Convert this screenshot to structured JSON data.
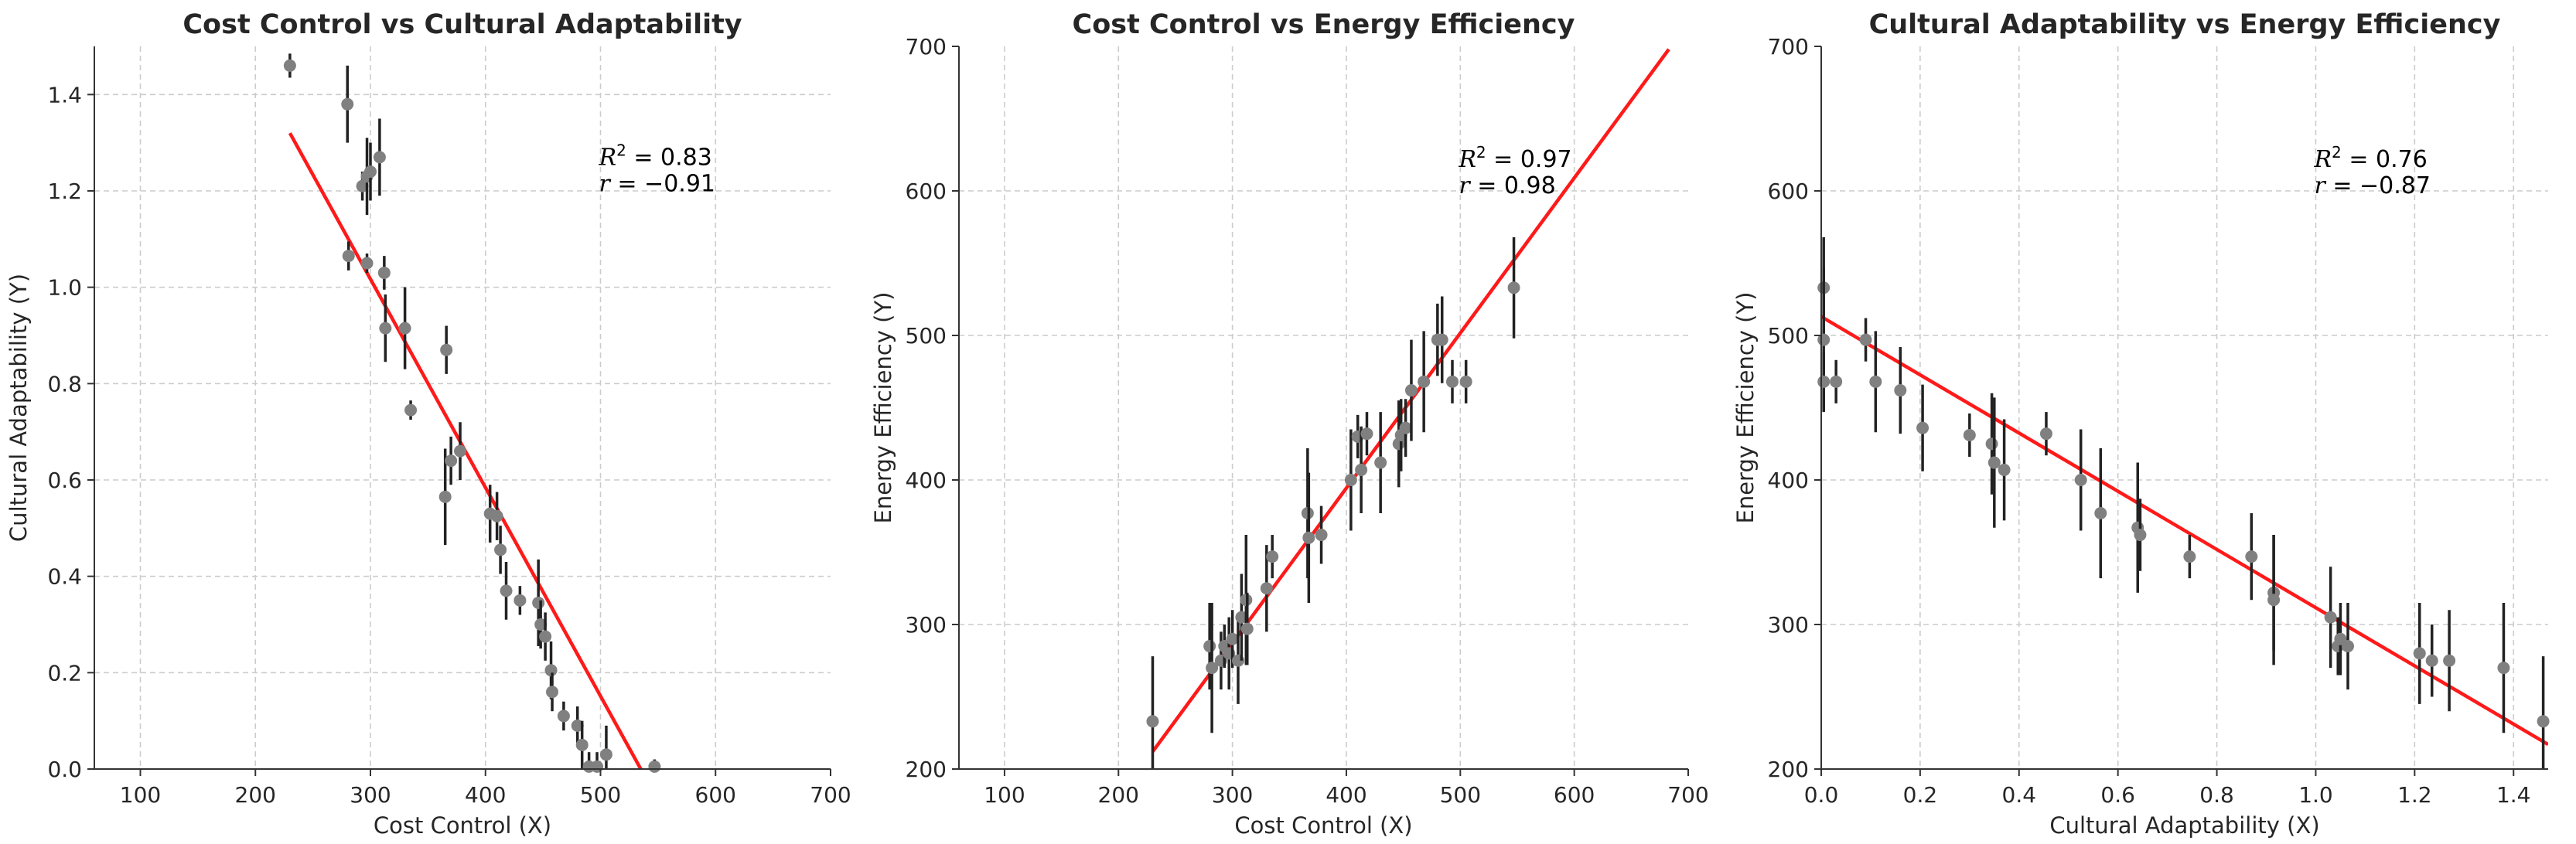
{
  "chart_data": [
    {
      "type": "scatter",
      "title": "Cost Control vs Cultural Adaptability",
      "xlabel": "Cost Control (X)",
      "ylabel": "Cultural Adaptability (Y)",
      "xlim": [
        60,
        700
      ],
      "ylim": [
        0,
        1.5
      ],
      "xticks": [
        100,
        200,
        300,
        400,
        500,
        600,
        700
      ],
      "yticks": [
        0,
        0.2,
        0.4,
        0.6,
        0.8,
        1.0,
        1.2,
        1.4
      ],
      "yticks_labels": [
        "0.0",
        "0.2",
        "0.4",
        "0.6",
        "0.8",
        "1.0",
        "1.2",
        "1.4"
      ],
      "grid": true,
      "annotation": {
        "r2": "0.83",
        "r": "−0.91",
        "pos": [
          500,
          1.27
        ]
      },
      "fit_line": {
        "x": [
          230,
          535
        ],
        "y": [
          1.32,
          0.0
        ]
      },
      "points": [
        {
          "x": 230,
          "y": 1.46,
          "err": 0.025
        },
        {
          "x": 280,
          "y": 1.38,
          "err": 0.08
        },
        {
          "x": 293,
          "y": 1.21,
          "err": 0.03
        },
        {
          "x": 297,
          "y": 1.23,
          "err": 0.08
        },
        {
          "x": 300,
          "y": 1.24,
          "err": 0.06
        },
        {
          "x": 308,
          "y": 1.27,
          "err": 0.08
        },
        {
          "x": 281,
          "y": 1.065,
          "err": 0.03
        },
        {
          "x": 297,
          "y": 1.05,
          "err": 0.02
        },
        {
          "x": 312,
          "y": 1.03,
          "err": 0.035
        },
        {
          "x": 313,
          "y": 0.915,
          "err": 0.07
        },
        {
          "x": 330,
          "y": 0.915,
          "err": 0.085
        },
        {
          "x": 335,
          "y": 0.745,
          "err": 0.02
        },
        {
          "x": 366,
          "y": 0.87,
          "err": 0.05
        },
        {
          "x": 365,
          "y": 0.565,
          "err": 0.1
        },
        {
          "x": 370,
          "y": 0.64,
          "err": 0.05
        },
        {
          "x": 378,
          "y": 0.66,
          "err": 0.06
        },
        {
          "x": 404,
          "y": 0.53,
          "err": 0.06
        },
        {
          "x": 410,
          "y": 0.525,
          "err": 0.05
        },
        {
          "x": 413,
          "y": 0.455,
          "err": 0.05
        },
        {
          "x": 418,
          "y": 0.37,
          "err": 0.06
        },
        {
          "x": 430,
          "y": 0.35,
          "err": 0.03
        },
        {
          "x": 446,
          "y": 0.345,
          "err": 0.09
        },
        {
          "x": 448,
          "y": 0.3,
          "err": 0.05
        },
        {
          "x": 452,
          "y": 0.275,
          "err": 0.05
        },
        {
          "x": 457,
          "y": 0.205,
          "err": 0.06
        },
        {
          "x": 458,
          "y": 0.16,
          "err": 0.04
        },
        {
          "x": 468,
          "y": 0.11,
          "err": 0.03
        },
        {
          "x": 480,
          "y": 0.09,
          "err": 0.04
        },
        {
          "x": 484,
          "y": 0.05,
          "err": 0.05
        },
        {
          "x": 490,
          "y": 0.005,
          "err": 0.03
        },
        {
          "x": 497,
          "y": 0.005,
          "err": 0.03
        },
        {
          "x": 505,
          "y": 0.03,
          "err": 0.06
        },
        {
          "x": 547,
          "y": 0.005,
          "err": 0.015
        }
      ]
    },
    {
      "type": "scatter",
      "title": "Cost Control vs Energy Efficiency",
      "xlabel": "Cost Control (X)",
      "ylabel": "Energy Efficiency (Y)",
      "xlim": [
        60,
        700
      ],
      "ylim": [
        200,
        700
      ],
      "xticks": [
        100,
        200,
        300,
        400,
        500,
        600,
        700
      ],
      "yticks": [
        200,
        300,
        400,
        500,
        600,
        700
      ],
      "yticks_labels": [
        "200",
        "300",
        "400",
        "500",
        "600",
        "700"
      ],
      "grid": true,
      "annotation": {
        "r2": "0.97",
        "r": "0.98",
        "pos": [
          500,
          622
        ]
      },
      "fit_line": {
        "x": [
          230,
          683
        ],
        "y": [
          212,
          698
        ]
      },
      "points": [
        {
          "x": 230,
          "y": 233,
          "err": 45
        },
        {
          "x": 280,
          "y": 285,
          "err": 30
        },
        {
          "x": 282,
          "y": 270,
          "err": 45
        },
        {
          "x": 290,
          "y": 275,
          "err": 20
        },
        {
          "x": 293,
          "y": 285,
          "err": 15
        },
        {
          "x": 297,
          "y": 280,
          "err": 25
        },
        {
          "x": 300,
          "y": 290,
          "err": 20
        },
        {
          "x": 305,
          "y": 275,
          "err": 30
        },
        {
          "x": 308,
          "y": 305,
          "err": 30
        },
        {
          "x": 312,
          "y": 317,
          "err": 45
        },
        {
          "x": 313,
          "y": 297,
          "err": 25
        },
        {
          "x": 330,
          "y": 325,
          "err": 30
        },
        {
          "x": 335,
          "y": 347,
          "err": 15
        },
        {
          "x": 366,
          "y": 377,
          "err": 45
        },
        {
          "x": 367,
          "y": 360,
          "err": 45
        },
        {
          "x": 378,
          "y": 362,
          "err": 20
        },
        {
          "x": 404,
          "y": 400,
          "err": 35
        },
        {
          "x": 410,
          "y": 430,
          "err": 15
        },
        {
          "x": 413,
          "y": 407,
          "err": 30
        },
        {
          "x": 418,
          "y": 432,
          "err": 15
        },
        {
          "x": 430,
          "y": 412,
          "err": 35
        },
        {
          "x": 446,
          "y": 425,
          "err": 30
        },
        {
          "x": 448,
          "y": 431,
          "err": 25
        },
        {
          "x": 452,
          "y": 436,
          "err": 20
        },
        {
          "x": 457,
          "y": 462,
          "err": 35
        },
        {
          "x": 468,
          "y": 468,
          "err": 35
        },
        {
          "x": 480,
          "y": 497,
          "err": 25
        },
        {
          "x": 484,
          "y": 497,
          "err": 30
        },
        {
          "x": 493,
          "y": 468,
          "err": 15
        },
        {
          "x": 505,
          "y": 468,
          "err": 15
        },
        {
          "x": 547,
          "y": 533,
          "err": 35
        }
      ]
    },
    {
      "type": "scatter",
      "title": "Cultural Adaptability vs Energy Efficiency",
      "xlabel": "Cultural Adaptability (X)",
      "ylabel": "Energy Efficiency (Y)",
      "xlim": [
        0,
        1.47
      ],
      "ylim": [
        200,
        700
      ],
      "xticks": [
        0,
        0.2,
        0.4,
        0.6,
        0.8,
        1.0,
        1.2,
        1.4
      ],
      "xticks_labels": [
        "0.0",
        "0.2",
        "0.4",
        "0.6",
        "0.8",
        "1.0",
        "1.2",
        "1.4"
      ],
      "yticks": [
        200,
        300,
        400,
        500,
        600,
        700
      ],
      "yticks_labels": [
        "200",
        "300",
        "400",
        "500",
        "600",
        "700"
      ],
      "grid": true,
      "annotation": {
        "r2": "0.76",
        "r": "−0.87",
        "pos": [
          1.0,
          622
        ]
      },
      "fit_line": {
        "x": [
          0,
          1.47
        ],
        "y": [
          513,
          217
        ]
      },
      "points": [
        {
          "x": 0.005,
          "y": 533,
          "err": 35
        },
        {
          "x": 0.005,
          "y": 497,
          "err": 50
        },
        {
          "x": 0.005,
          "y": 468,
          "err": 20
        },
        {
          "x": 0.03,
          "y": 468,
          "err": 15
        },
        {
          "x": 0.09,
          "y": 497,
          "err": 15
        },
        {
          "x": 0.11,
          "y": 468,
          "err": 35
        },
        {
          "x": 0.16,
          "y": 462,
          "err": 30
        },
        {
          "x": 0.205,
          "y": 436,
          "err": 30
        },
        {
          "x": 0.3,
          "y": 431,
          "err": 15
        },
        {
          "x": 0.345,
          "y": 425,
          "err": 35
        },
        {
          "x": 0.35,
          "y": 412,
          "err": 45
        },
        {
          "x": 0.37,
          "y": 407,
          "err": 35
        },
        {
          "x": 0.455,
          "y": 432,
          "err": 15
        },
        {
          "x": 0.525,
          "y": 400,
          "err": 35
        },
        {
          "x": 0.565,
          "y": 377,
          "err": 45
        },
        {
          "x": 0.64,
          "y": 367,
          "err": 45
        },
        {
          "x": 0.645,
          "y": 362,
          "err": 25
        },
        {
          "x": 0.745,
          "y": 347,
          "err": 15
        },
        {
          "x": 0.87,
          "y": 347,
          "err": 30
        },
        {
          "x": 0.915,
          "y": 322,
          "err": 40
        },
        {
          "x": 0.915,
          "y": 317,
          "err": 45
        },
        {
          "x": 1.03,
          "y": 305,
          "err": 35
        },
        {
          "x": 1.045,
          "y": 285,
          "err": 20
        },
        {
          "x": 1.05,
          "y": 290,
          "err": 25
        },
        {
          "x": 1.065,
          "y": 285,
          "err": 30
        },
        {
          "x": 1.21,
          "y": 280,
          "err": 35
        },
        {
          "x": 1.235,
          "y": 275,
          "err": 25
        },
        {
          "x": 1.27,
          "y": 275,
          "err": 35
        },
        {
          "x": 1.38,
          "y": 270,
          "err": 45
        },
        {
          "x": 1.46,
          "y": 233,
          "err": 45
        }
      ]
    }
  ]
}
